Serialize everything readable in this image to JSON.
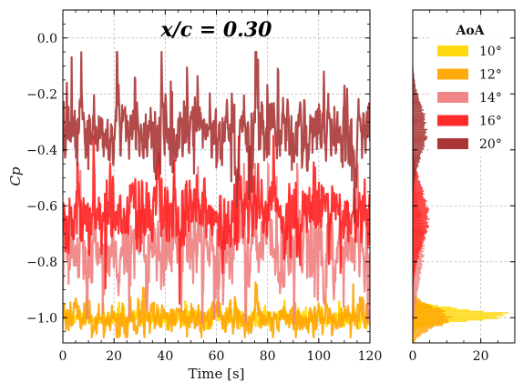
{
  "chart_data": [
    {
      "type": "line",
      "title": "x/c = 0.30",
      "xlabel": "Time [s]",
      "ylabel": "Cp",
      "xlim": [
        0,
        120
      ],
      "ylim": [
        -1.09,
        0.1
      ],
      "xticks": [
        0,
        20,
        40,
        60,
        80,
        100,
        120
      ],
      "yticks": [
        0.0,
        -0.2,
        -0.4,
        -0.6,
        -0.8,
        -1.0
      ],
      "xtick_labels": [
        "0",
        "20",
        "40",
        "60",
        "80",
        "100",
        "120"
      ],
      "ytick_labels": [
        "0.0",
        "−0.2",
        "−0.4",
        "−0.6",
        "−0.8",
        "−1.0"
      ],
      "grid": true,
      "series": [
        {
          "name": "10°",
          "color": "#FFD700",
          "mean": -1.0,
          "amplitude": 0.03,
          "min": -1.04,
          "max": -0.93
        },
        {
          "name": "12°",
          "color": "#FFA500",
          "mean": -1.0,
          "amplitude": 0.05,
          "min": -1.07,
          "max": -0.82
        },
        {
          "name": "14°",
          "color": "#F08080",
          "mean": -0.74,
          "amplitude": 0.15,
          "min": -1.02,
          "max": -0.45
        },
        {
          "name": "16°",
          "color": "#FF2020",
          "mean": -0.63,
          "amplitude": 0.12,
          "min": -0.95,
          "max": -0.35
        },
        {
          "name": "20°",
          "color": "#A52A2A",
          "mean": -0.33,
          "amplitude": 0.12,
          "min": -0.72,
          "max": -0.05
        }
      ]
    },
    {
      "type": "bar",
      "orientation": "horizontal",
      "title": "",
      "xlabel": "",
      "ylabel": "",
      "xlim": [
        0,
        30
      ],
      "xticks": [
        0,
        20
      ],
      "xtick_labels": [
        "0",
        "20"
      ],
      "grid": true,
      "legend": {
        "title": "AoA",
        "placement": "top-right",
        "entries": [
          "10°",
          "12°",
          "14°",
          "16°",
          "20°"
        ]
      },
      "histograms": [
        {
          "name": "10°",
          "color": "#FFD700",
          "peak_cp": -0.99,
          "peak_density": 27.0,
          "spread": 0.02
        },
        {
          "name": "12°",
          "color": "#FFA500",
          "peak_cp": -1.0,
          "peak_density": 11.0,
          "spread": 0.035
        },
        {
          "name": "14°",
          "color": "#F08080",
          "peak_cp": -0.74,
          "peak_density": 3.2,
          "spread": 0.13
        },
        {
          "name": "16°",
          "color": "#FF2020",
          "peak_cp": -0.64,
          "peak_density": 4.5,
          "spread": 0.1
        },
        {
          "name": "20°",
          "color": "#A52A2A",
          "peak_cp": -0.33,
          "peak_density": 4.0,
          "spread": 0.09
        }
      ]
    }
  ]
}
